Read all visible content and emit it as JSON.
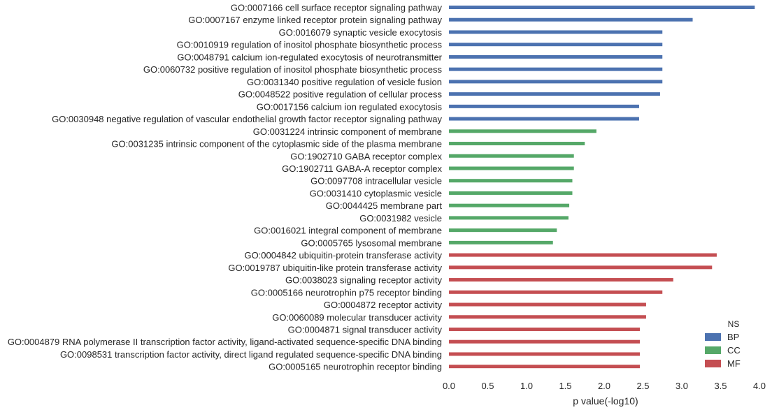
{
  "chart_data": {
    "type": "bar",
    "orientation": "horizontal",
    "xlabel": "p value(-log10)",
    "xlim": [
      0.0,
      4.0
    ],
    "xticks": [
      "0.0",
      "0.5",
      "1.0",
      "1.5",
      "2.0",
      "2.5",
      "3.0",
      "3.5",
      "4.0"
    ],
    "grid": false,
    "legend": {
      "title": "NS",
      "position": "bottom-right",
      "entries": [
        {
          "name": "BP",
          "color": "#4c72b0"
        },
        {
          "name": "CC",
          "color": "#55a868"
        },
        {
          "name": "MF",
          "color": "#c44e52"
        }
      ]
    },
    "categories": [
      "GO:0007166 cell surface receptor signaling pathway",
      "GO:0007167 enzyme linked receptor protein signaling pathway",
      "GO:0016079 synaptic vesicle exocytosis",
      "GO:0010919 regulation of inositol phosphate biosynthetic process",
      "GO:0048791 calcium ion-regulated exocytosis of neurotransmitter",
      "GO:0060732 positive regulation of inositol phosphate biosynthetic process",
      "GO:0031340 positive regulation of vesicle fusion",
      "GO:0048522 positive regulation of cellular process",
      "GO:0017156 calcium ion regulated exocytosis",
      "GO:0030948 negative regulation of vascular endothelial growth factor receptor signaling pathway",
      "GO:0031224 intrinsic component of membrane",
      "GO:0031235 intrinsic component of the cytoplasmic side of the plasma membrane",
      "GO:1902710 GABA receptor complex",
      "GO:1902711 GABA-A receptor complex",
      "GO:0097708 intracellular vesicle",
      "GO:0031410 cytoplasmic vesicle",
      "GO:0044425 membrane part",
      "GO:0031982 vesicle",
      "GO:0016021 integral component of membrane",
      "GO:0005765 lysosomal membrane",
      "GO:0004842 ubiquitin-protein transferase activity",
      "GO:0019787 ubiquitin-like protein transferase activity",
      "GO:0038023 signaling receptor activity",
      "GO:0005166 neurotrophin p75 receptor binding",
      "GO:0004872 receptor activity",
      "GO:0060089 molecular transducer activity",
      "GO:0004871 signal transducer activity",
      "GO:0004879 RNA polymerase II transcription factor activity, ligand-activated sequence-specific DNA binding",
      "GO:0098531 transcription factor activity, direct ligand regulated sequence-specific DNA binding",
      "GO:0005165 neurotrophin receptor binding"
    ],
    "values": [
      3.94,
      3.14,
      2.75,
      2.75,
      2.75,
      2.75,
      2.75,
      2.72,
      2.45,
      2.45,
      1.9,
      1.75,
      1.61,
      1.61,
      1.59,
      1.59,
      1.55,
      1.54,
      1.39,
      1.34,
      3.45,
      3.39,
      2.89,
      2.75,
      2.54,
      2.54,
      2.46,
      2.46,
      2.46,
      2.46
    ],
    "groups": [
      "BP",
      "BP",
      "BP",
      "BP",
      "BP",
      "BP",
      "BP",
      "BP",
      "BP",
      "BP",
      "CC",
      "CC",
      "CC",
      "CC",
      "CC",
      "CC",
      "CC",
      "CC",
      "CC",
      "CC",
      "MF",
      "MF",
      "MF",
      "MF",
      "MF",
      "MF",
      "MF",
      "MF",
      "MF",
      "MF"
    ]
  }
}
